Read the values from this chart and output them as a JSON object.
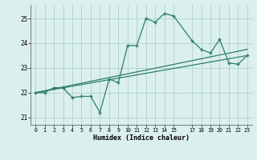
{
  "xlabel": "Humidex (Indice chaleur)",
  "bg_color": "#daf0ee",
  "grid_color": "#b0d0cc",
  "line_color": "#2e7d6e",
  "xlim": [
    -0.5,
    23.5
  ],
  "ylim": [
    20.7,
    25.55
  ],
  "yticks": [
    21,
    22,
    23,
    24,
    25
  ],
  "xticks": [
    0,
    1,
    2,
    3,
    4,
    5,
    6,
    7,
    8,
    9,
    10,
    11,
    12,
    13,
    14,
    15,
    17,
    18,
    19,
    20,
    21,
    22,
    23
  ],
  "line1_x": [
    0,
    1,
    2,
    3,
    4,
    5,
    6,
    7,
    8,
    9,
    10,
    11,
    12,
    13,
    14,
    15,
    17,
    18,
    19,
    20,
    21,
    22,
    23
  ],
  "line1_y": [
    22.0,
    22.0,
    22.2,
    22.2,
    21.8,
    21.85,
    21.85,
    21.2,
    22.55,
    22.4,
    23.9,
    23.9,
    25.0,
    24.85,
    25.2,
    25.1,
    24.1,
    23.75,
    23.6,
    24.15,
    23.2,
    23.15,
    23.5
  ],
  "line2_x": [
    0,
    23
  ],
  "line2_y": [
    22.0,
    23.5
  ],
  "line3_x": [
    0,
    23
  ],
  "line3_y": [
    22.0,
    23.75
  ]
}
